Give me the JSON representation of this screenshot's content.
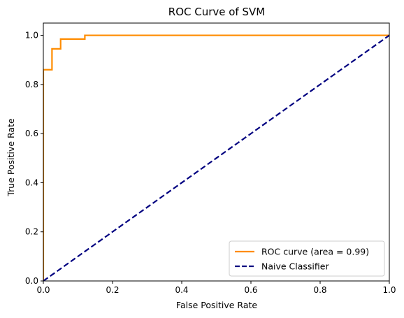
{
  "chart_data": {
    "type": "line",
    "title": "ROC Curve of SVM",
    "xlabel": "False Positive Rate",
    "ylabel": "True Positive Rate",
    "xlim": [
      0.0,
      1.0
    ],
    "ylim": [
      0.0,
      1.05
    ],
    "xticks": [
      0.0,
      0.2,
      0.4,
      0.6,
      0.8,
      1.0
    ],
    "yticks": [
      0.0,
      0.2,
      0.4,
      0.6,
      0.8,
      1.0
    ],
    "xtick_labels": [
      "0.0",
      "0.2",
      "0.4",
      "0.6",
      "0.8",
      "1.0"
    ],
    "ytick_labels": [
      "0.0",
      "0.2",
      "0.4",
      "0.6",
      "0.8",
      "1.0"
    ],
    "grid": false,
    "legend_position": "lower-right",
    "series": [
      {
        "name": "ROC curve (area = 0.99)",
        "color": "#ff8c00",
        "style": "solid",
        "x": [
          0.0,
          0.0,
          0.0,
          0.025,
          0.025,
          0.05,
          0.05,
          0.12,
          0.12,
          1.0
        ],
        "y": [
          0.0,
          0.86,
          0.86,
          0.86,
          0.945,
          0.945,
          0.985,
          0.985,
          1.0,
          1.0
        ]
      },
      {
        "name": "Naive Classifier",
        "color": "#000080",
        "style": "dashed",
        "x": [
          0.0,
          1.0
        ],
        "y": [
          0.0,
          1.0
        ]
      }
    ]
  }
}
